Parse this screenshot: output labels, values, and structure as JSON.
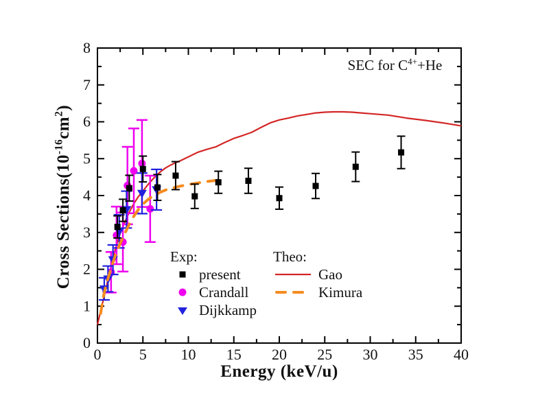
{
  "annotation": {
    "prefix": "SEC for C",
    "sup": "4+",
    "suffix": "+He"
  },
  "y_label_parts": {
    "p1": "Cross Sections(10",
    "sup1": "-16",
    "p2": "cm",
    "sup2": "2",
    "p3": ")"
  },
  "legend": {
    "exp_header": "Exp:",
    "theo_header": "Theo:"
  },
  "colors": {
    "present": "#000000",
    "crandall": "#ee00ee",
    "dijkkamp": "#2222dd",
    "gao": "#d42626",
    "kimura": "#f68b1f",
    "axis": "#000000"
  },
  "chart_data": {
    "type": "scatter",
    "title": "SEC for C4+ + He",
    "xlabel": "Energy (keV/u)",
    "ylabel": "Cross Sections (10^-16 cm^2)",
    "xlim": [
      0,
      40
    ],
    "ylim": [
      0,
      8
    ],
    "x_major_ticks": [
      0,
      5,
      10,
      15,
      20,
      25,
      30,
      35,
      40
    ],
    "y_major_ticks": [
      0,
      1,
      2,
      3,
      4,
      5,
      6,
      7,
      8
    ],
    "x_minor_step": 2.5,
    "y_minor_step": 0.5,
    "grid": false,
    "legend_position": "inside-bottom-center",
    "series": [
      {
        "name": "present",
        "group": "Exp",
        "type": "scatter",
        "marker": "square",
        "color_key": "present",
        "points": [
          [
            2.2,
            3.15,
            0.3
          ],
          [
            2.8,
            3.6,
            0.3
          ],
          [
            3.5,
            4.2,
            0.35
          ],
          [
            5.0,
            4.72,
            0.35
          ],
          [
            6.6,
            4.22,
            0.35
          ],
          [
            8.6,
            4.54,
            0.38
          ],
          [
            10.7,
            3.98,
            0.33
          ],
          [
            13.3,
            4.36,
            0.3
          ],
          [
            16.6,
            4.4,
            0.34
          ],
          [
            20.0,
            3.93,
            0.3
          ],
          [
            24.0,
            4.26,
            0.34
          ],
          [
            28.4,
            4.78,
            0.4
          ],
          [
            33.4,
            5.17,
            0.44
          ]
        ]
      },
      {
        "name": "Crandall",
        "group": "Exp",
        "type": "scatter",
        "marker": "circle",
        "color_key": "crandall",
        "points": [
          [
            1.5,
            1.92,
            0.55
          ],
          [
            2.1,
            2.92,
            0.78
          ],
          [
            2.8,
            2.74,
            0.8
          ],
          [
            3.3,
            4.27,
            1.05
          ],
          [
            4.0,
            4.67,
            1.15
          ],
          [
            4.9,
            4.87,
            1.18
          ],
          [
            5.8,
            3.64,
            0.9
          ]
        ]
      },
      {
        "name": "Dijkkamp",
        "group": "Exp",
        "type": "scatter",
        "marker": "triangle-down",
        "color_key": "dijkkamp",
        "points": [
          [
            0.75,
            1.47,
            0.3
          ],
          [
            1.16,
            1.74,
            0.35
          ],
          [
            1.71,
            2.26,
            0.4
          ],
          [
            2.4,
            3.03,
            0.45
          ],
          [
            3.2,
            3.62,
            0.5
          ],
          [
            4.9,
            4.06,
            0.55
          ],
          [
            6.5,
            4.16,
            0.55
          ]
        ]
      },
      {
        "name": "Gao",
        "group": "Theo",
        "type": "line",
        "style": "solid",
        "color_key": "gao",
        "points": [
          [
            0,
            0.5
          ],
          [
            0.5,
            1.02
          ],
          [
            1,
            1.55
          ],
          [
            1.5,
            2.08
          ],
          [
            2,
            2.58
          ],
          [
            2.5,
            2.97
          ],
          [
            3,
            3.28
          ],
          [
            3.5,
            3.55
          ],
          [
            4,
            3.78
          ],
          [
            4.5,
            3.97
          ],
          [
            5,
            4.12
          ],
          [
            5.5,
            4.28
          ],
          [
            6,
            4.42
          ],
          [
            6.5,
            4.55
          ],
          [
            7,
            4.66
          ],
          [
            7.5,
            4.75
          ],
          [
            8,
            4.82
          ],
          [
            8.5,
            4.88
          ],
          [
            9,
            4.93
          ],
          [
            10,
            5.05
          ],
          [
            11,
            5.17
          ],
          [
            12,
            5.25
          ],
          [
            13,
            5.32
          ],
          [
            14,
            5.44
          ],
          [
            15,
            5.55
          ],
          [
            16,
            5.63
          ],
          [
            17,
            5.72
          ],
          [
            18,
            5.85
          ],
          [
            19,
            5.97
          ],
          [
            20,
            6.05
          ],
          [
            21,
            6.1
          ],
          [
            22,
            6.16
          ],
          [
            23,
            6.2
          ],
          [
            24,
            6.24
          ],
          [
            25,
            6.26
          ],
          [
            26,
            6.27
          ],
          [
            27,
            6.27
          ],
          [
            28,
            6.26
          ],
          [
            29,
            6.24
          ],
          [
            30,
            6.22
          ],
          [
            32,
            6.18
          ],
          [
            34,
            6.1
          ],
          [
            36,
            6.04
          ],
          [
            38,
            5.97
          ],
          [
            40,
            5.89
          ]
        ]
      },
      {
        "name": "Kimura",
        "group": "Theo",
        "type": "line",
        "style": "dashed",
        "color_key": "kimura",
        "points": [
          [
            0.35,
            0.8
          ],
          [
            0.7,
            1.32
          ],
          [
            1,
            1.62
          ],
          [
            1.5,
            2.03
          ],
          [
            2,
            2.4
          ],
          [
            2.5,
            2.7
          ],
          [
            3,
            2.97
          ],
          [
            3.5,
            3.22
          ],
          [
            4,
            3.44
          ],
          [
            4.5,
            3.62
          ],
          [
            5,
            3.77
          ],
          [
            5.5,
            3.88
          ],
          [
            6,
            3.97
          ],
          [
            6.5,
            4.04
          ],
          [
            7,
            4.1
          ],
          [
            7.5,
            4.15
          ],
          [
            8,
            4.19
          ],
          [
            9,
            4.25
          ],
          [
            10,
            4.3
          ],
          [
            11,
            4.34
          ],
          [
            12,
            4.38
          ],
          [
            13,
            4.41
          ],
          [
            13.9,
            4.43
          ]
        ]
      }
    ]
  }
}
